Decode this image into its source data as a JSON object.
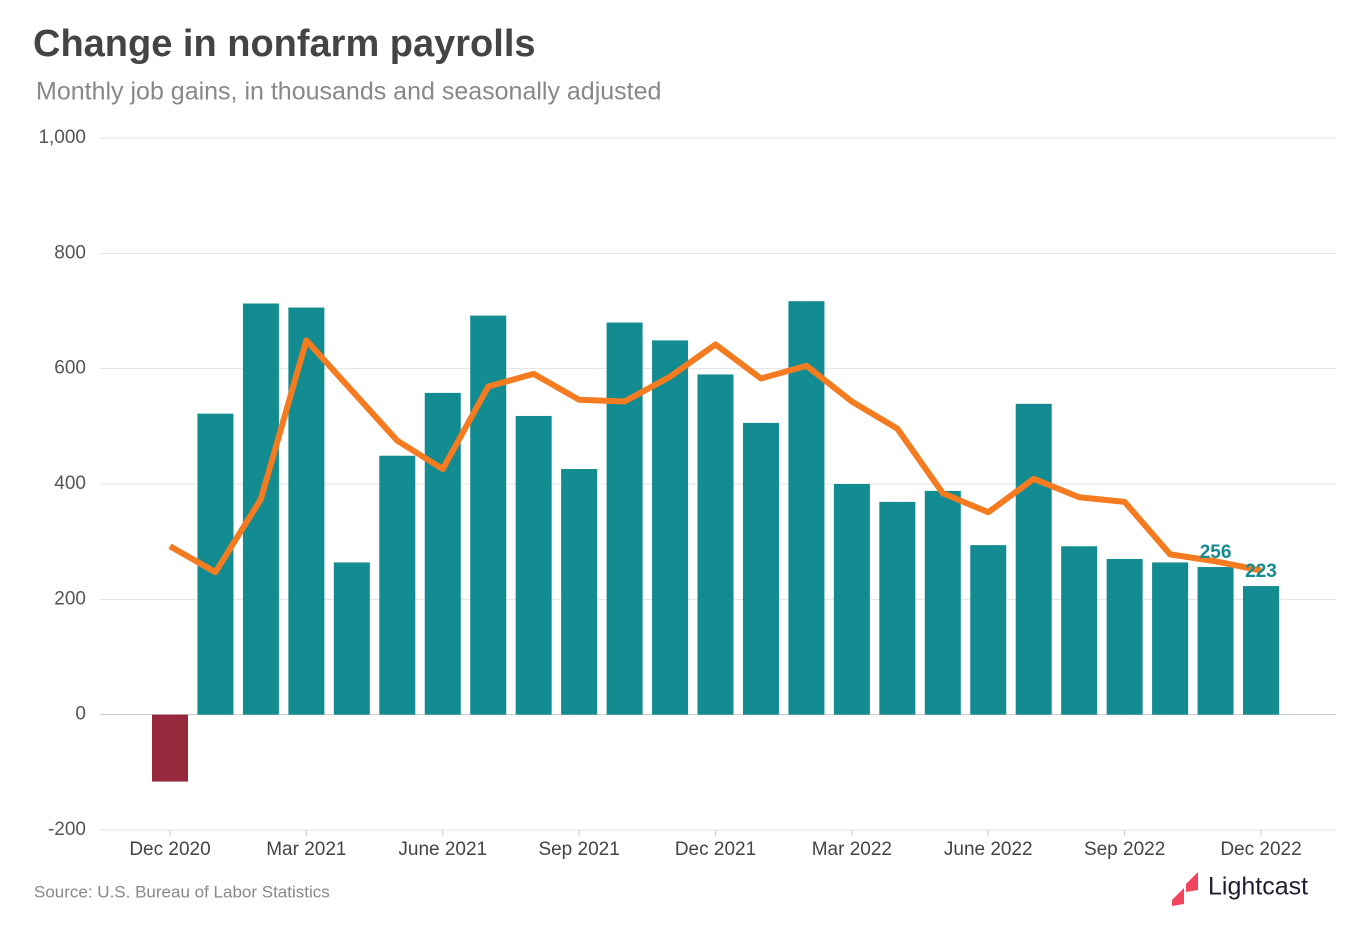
{
  "chart_data": {
    "type": "bar",
    "title": "Change in nonfarm payrolls",
    "subtitle": "Monthly job gains, in thousands and seasonally adjusted",
    "source": "Source:  U.S. Bureau of Labor Statistics",
    "logo": "Lightcast",
    "categories": [
      "Dec 2020",
      null,
      null,
      "Mar 2021",
      null,
      null,
      "June 2021",
      null,
      null,
      "Sep 2021",
      null,
      null,
      "Dec 2021",
      null,
      null,
      "Mar 2022",
      null,
      null,
      "June 2022",
      null,
      null,
      "Sep 2022",
      null,
      null,
      "Dec 2022"
    ],
    "series": [
      {
        "type": "bar",
        "color": "#128c91",
        "negative_color": "#962a3c",
        "label_last": 2,
        "values": [
          -116,
          522,
          713,
          706,
          264,
          449,
          558,
          692,
          518,
          426,
          680,
          649,
          590,
          506,
          717,
          400,
          369,
          388,
          294,
          539,
          292,
          270,
          264,
          256,
          223
        ]
      },
      {
        "type": "line",
        "color": "#f47b20",
        "values": [
          292,
          247,
          374,
          649,
          562,
          475,
          426,
          569,
          591,
          546,
          543,
          586,
          642,
          583,
          605,
          543,
          496,
          384,
          351,
          409,
          377,
          369,
          278,
          266,
          250
        ]
      }
    ],
    "ylim": [
      -200,
      1000
    ],
    "yticks": [
      -200,
      0,
      200,
      400,
      600,
      800,
      {
        "value": 1000,
        "label": "1,000"
      }
    ],
    "grid": true
  }
}
